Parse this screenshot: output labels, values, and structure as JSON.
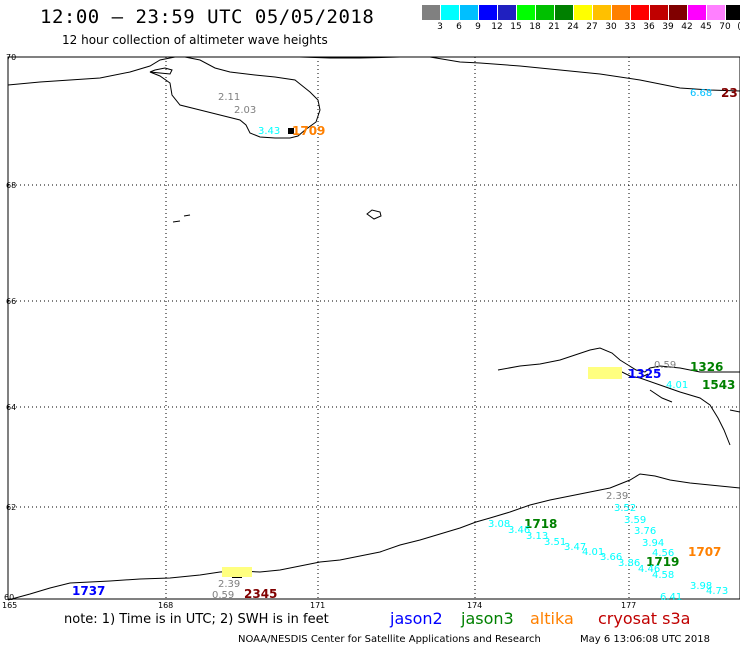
{
  "header": {
    "title": "12:00 – 23:59 UTC 05/05/2018",
    "subtitle": "12 hour collection of altimeter wave heights"
  },
  "scale": {
    "colors": [
      "#808080",
      "#00ffff",
      "#00bfff",
      "#0000ff",
      "#2020c0",
      "#00ff00",
      "#00c000",
      "#008000",
      "#ffff00",
      "#ffc000",
      "#ff8000",
      "#ff0000",
      "#c00000",
      "#800000",
      "#ff00ff",
      "#ff80ff",
      "#000000"
    ],
    "labels": [
      "3",
      "6",
      "9",
      "12",
      "15",
      "18",
      "21",
      "24",
      "27",
      "30",
      "33",
      "36",
      "39",
      "42",
      "45",
      "70",
      "(ft)"
    ]
  },
  "axes": {
    "lat_labels": [
      "70",
      "68",
      "66",
      "64",
      "62",
      "60"
    ],
    "lon_labels": [
      "165",
      "168",
      "171",
      "174",
      "177"
    ]
  },
  "observations": [
    {
      "text": "2.11",
      "color": "#808080"
    },
    {
      "text": "2.03",
      "color": "#808080"
    },
    {
      "text": "3.43",
      "color": "#00ffff"
    },
    {
      "text": "1709",
      "color": "#ff8000",
      "big": true
    },
    {
      "text": "6.68",
      "color": "#00ffff"
    },
    {
      "text": "23",
      "color": "#800000",
      "big": true
    },
    {
      "text": "0.59",
      "color": "#808080"
    },
    {
      "text": "1326",
      "color": "#008000",
      "big": true
    },
    {
      "text": "1325",
      "color": "#0000ff",
      "big": true
    },
    {
      "text": "4.01",
      "color": "#00ffff"
    },
    {
      "text": "1543",
      "color": "#008000",
      "big": true
    },
    {
      "text": "2.39",
      "color": "#808080"
    },
    {
      "text": "3.52",
      "color": "#00ffff"
    },
    {
      "text": "3.59",
      "color": "#00ffff"
    },
    {
      "text": "3.76",
      "color": "#00ffff"
    },
    {
      "text": "3.94",
      "color": "#00ffff"
    },
    {
      "text": "4.56",
      "color": "#00ffff"
    },
    {
      "text": "1707",
      "color": "#ff8000",
      "big": true
    },
    {
      "text": "3.08",
      "color": "#00ffff"
    },
    {
      "text": "1718",
      "color": "#008000",
      "big": true
    },
    {
      "text": "3.46",
      "color": "#00ffff"
    },
    {
      "text": "3.13",
      "color": "#00ffff"
    },
    {
      "text": "3.51",
      "color": "#00ffff"
    },
    {
      "text": "3.47",
      "color": "#00ffff"
    },
    {
      "text": "4.01",
      "color": "#00ffff"
    },
    {
      "text": "3.66",
      "color": "#00ffff"
    },
    {
      "text": "3.86",
      "color": "#00ffff"
    },
    {
      "text": "1719",
      "color": "#008000",
      "big": true
    },
    {
      "text": "4.46",
      "color": "#00ffff"
    },
    {
      "text": "4.58",
      "color": "#00ffff"
    },
    {
      "text": "6.41",
      "color": "#00ffff"
    },
    {
      "text": "4.73",
      "color": "#00ffff"
    },
    {
      "text": "3.98",
      "color": "#00ffff"
    },
    {
      "text": "1737",
      "color": "#0000ff",
      "big": true
    },
    {
      "text": "2.39",
      "color": "#808080"
    },
    {
      "text": "0.59",
      "color": "#808080"
    },
    {
      "text": "2345",
      "color": "#800000",
      "big": true
    }
  ],
  "footer": {
    "note": "note: 1) Time is in UTC; 2) SWH is in feet",
    "legend": [
      {
        "name": "jason2",
        "color": "#0000ff"
      },
      {
        "name": "jason3",
        "color": "#008000"
      },
      {
        "name": "altika",
        "color": "#ff8000"
      },
      {
        "name": "cryosat s3a",
        "color": "#c00000"
      }
    ],
    "credit": "NOAA/NESDIS Center for Satellite Applications and Research",
    "timestamp": "May  6 13:06:08 UTC 2018"
  }
}
